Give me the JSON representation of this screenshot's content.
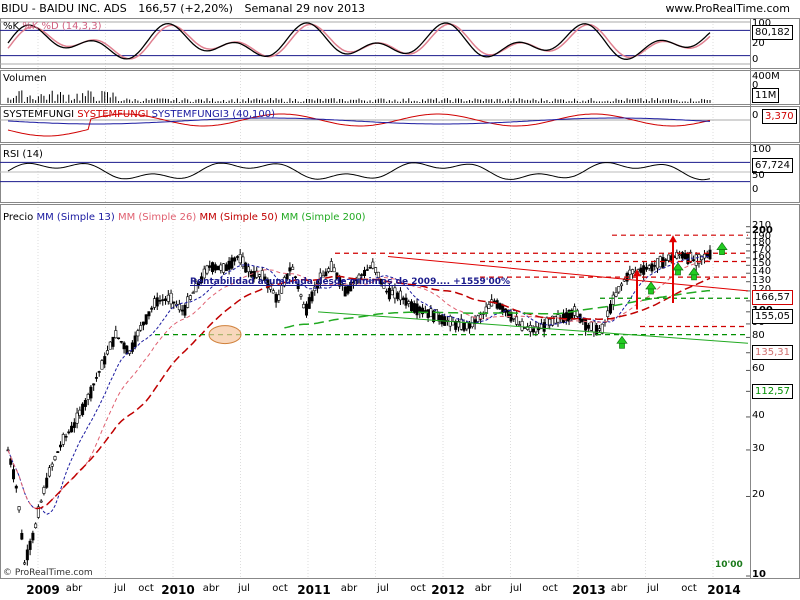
{
  "header": {
    "ticker": "BIDU - BAIDU INC. ADS",
    "price": "166,57 (+2,20%)",
    "period": "Semanal  29 nov 2013",
    "brand": "www.ProRealTime.com"
  },
  "panels": {
    "stoch": {
      "label": "%K %D (14,3,3)",
      "k_label": "%K",
      "value": "80,182",
      "ticks": [
        "100",
        "80",
        "20",
        "0"
      ]
    },
    "volume": {
      "label": "Volumen",
      "value": "11M",
      "ticks": [
        "400M",
        "0"
      ]
    },
    "systemfungi": {
      "label": "SYSTEMFUNGI",
      "label2": "SYSTEMFUNGI",
      "label3": "SYSTEMFUNGI3 (40,100)",
      "value": "3,370",
      "ticks": [
        "0"
      ]
    },
    "rsi": {
      "label": "RSI (14)",
      "value": "67,724",
      "ticks": [
        "100",
        "50",
        "0"
      ]
    },
    "price": {
      "label": "Precio",
      "ma_labels": [
        "MM (Simple 13)",
        "MM (Simple 26)",
        "MM (Simple 50)",
        "MM (Simple 200)"
      ],
      "ma_colors": [
        "#1a1aa0",
        "#e06070",
        "#c00000",
        "#22aa22"
      ],
      "annotation": "Rentabilidad acumulada desde mínimos de 2009.... +1559'00%",
      "ten_label": "10'00",
      "copyright": "© ProRealTime.com",
      "value_boxes": [
        {
          "text": "166,57",
          "color": "#d00000"
        },
        {
          "text": "155,05",
          "color": "#d00000"
        },
        {
          "text": "135,31",
          "color": "#d07070"
        },
        {
          "text": "112,57",
          "color": "#009000"
        }
      ]
    }
  },
  "x_axis": {
    "labels": [
      {
        "text": "2009",
        "bold": true
      },
      {
        "text": "abr",
        "bold": false
      },
      {
        "text": "jul",
        "bold": false
      },
      {
        "text": "oct",
        "bold": false
      },
      {
        "text": "2010",
        "bold": true
      },
      {
        "text": "abr",
        "bold": false
      },
      {
        "text": "jul",
        "bold": false
      },
      {
        "text": "oct",
        "bold": false
      },
      {
        "text": "2011",
        "bold": true
      },
      {
        "text": "abr",
        "bold": false
      },
      {
        "text": "jul",
        "bold": false
      },
      {
        "text": "oct",
        "bold": false
      },
      {
        "text": "2012",
        "bold": true
      },
      {
        "text": "abr",
        "bold": false
      },
      {
        "text": "jul",
        "bold": false
      },
      {
        "text": "oct",
        "bold": false
      },
      {
        "text": "2013",
        "bold": true
      },
      {
        "text": "abr",
        "bold": false
      },
      {
        "text": "jul",
        "bold": false
      },
      {
        "text": "oct",
        "bold": false
      },
      {
        "text": "2014",
        "bold": true
      }
    ]
  },
  "chart_data": {
    "type": "line",
    "title": "BIDU - BAIDU INC. ADS",
    "price_scale": "log",
    "y_ticks": [
      10,
      20,
      30,
      40,
      50,
      60,
      70,
      80,
      90,
      100,
      110,
      120,
      130,
      140,
      150,
      160,
      170,
      180,
      190,
      200,
      210
    ],
    "ylim": [
      10,
      215
    ],
    "x_dates": [
      "2009-01",
      "2009-04",
      "2009-07",
      "2009-10",
      "2010-01",
      "2010-04",
      "2010-07",
      "2010-10",
      "2011-01",
      "2011-04",
      "2011-07",
      "2011-10",
      "2012-01",
      "2012-04",
      "2012-07",
      "2012-10",
      "2013-01",
      "2013-04",
      "2013-07",
      "2013-10",
      "2014-01"
    ],
    "price_path": [
      [
        0.0,
        30
      ],
      [
        0.03,
        22
      ],
      [
        0.06,
        11
      ],
      [
        0.1,
        15
      ],
      [
        0.15,
        24
      ],
      [
        0.2,
        32
      ],
      [
        0.25,
        38
      ],
      [
        0.3,
        48
      ],
      [
        0.35,
        63
      ],
      [
        0.4,
        82
      ],
      [
        0.45,
        70
      ],
      [
        0.5,
        90
      ],
      [
        0.55,
        110
      ],
      [
        0.6,
        112
      ],
      [
        0.65,
        100
      ],
      [
        0.7,
        125
      ],
      [
        0.75,
        150
      ],
      [
        0.8,
        145
      ],
      [
        0.85,
        162
      ],
      [
        0.9,
        140
      ],
      [
        0.95,
        135
      ],
      [
        1.0,
        110
      ],
      [
        1.05,
        150
      ],
      [
        1.1,
        100
      ],
      [
        1.15,
        130
      ],
      [
        1.2,
        148
      ],
      [
        1.25,
        120
      ],
      [
        1.3,
        135
      ],
      [
        1.35,
        150
      ],
      [
        1.4,
        120
      ],
      [
        1.45,
        115
      ],
      [
        1.5,
        105
      ],
      [
        1.55,
        100
      ],
      [
        1.6,
        95
      ],
      [
        1.65,
        90
      ],
      [
        1.7,
        88
      ],
      [
        1.75,
        95
      ],
      [
        1.8,
        110
      ],
      [
        1.85,
        100
      ],
      [
        1.9,
        88
      ],
      [
        1.95,
        85
      ],
      [
        2.0,
        90
      ],
      [
        2.05,
        95
      ],
      [
        2.1,
        100
      ],
      [
        2.15,
        88
      ],
      [
        2.2,
        85
      ],
      [
        2.25,
        115
      ],
      [
        2.3,
        140
      ],
      [
        2.35,
        145
      ],
      [
        2.4,
        150
      ],
      [
        2.45,
        160
      ],
      [
        2.5,
        165
      ],
      [
        2.55,
        155
      ],
      [
        2.6,
        166.57
      ]
    ],
    "levels": [
      {
        "value": 195,
        "color": "#d00000",
        "style": "dashed"
      },
      {
        "value": 166.57,
        "color": "#d00000",
        "style": "dashed"
      },
      {
        "value": 155.05,
        "color": "#d00000",
        "style": "dashed"
      },
      {
        "value": 135.31,
        "color": "#d00000",
        "style": "dashed"
      },
      {
        "value": 112.57,
        "color": "#009000",
        "style": "dashed"
      },
      {
        "value": 88,
        "color": "#d00000",
        "style": "dashed"
      },
      {
        "value": 82,
        "color": "#009000",
        "style": "dashed"
      }
    ],
    "last_values": {
      "price": 166.57,
      "ma13": 155.05,
      "ma26": 135.31,
      "ma50": 112.57,
      "stochastic": 80.182,
      "rsi": 67.724,
      "systemfungi": 3.37
    }
  }
}
